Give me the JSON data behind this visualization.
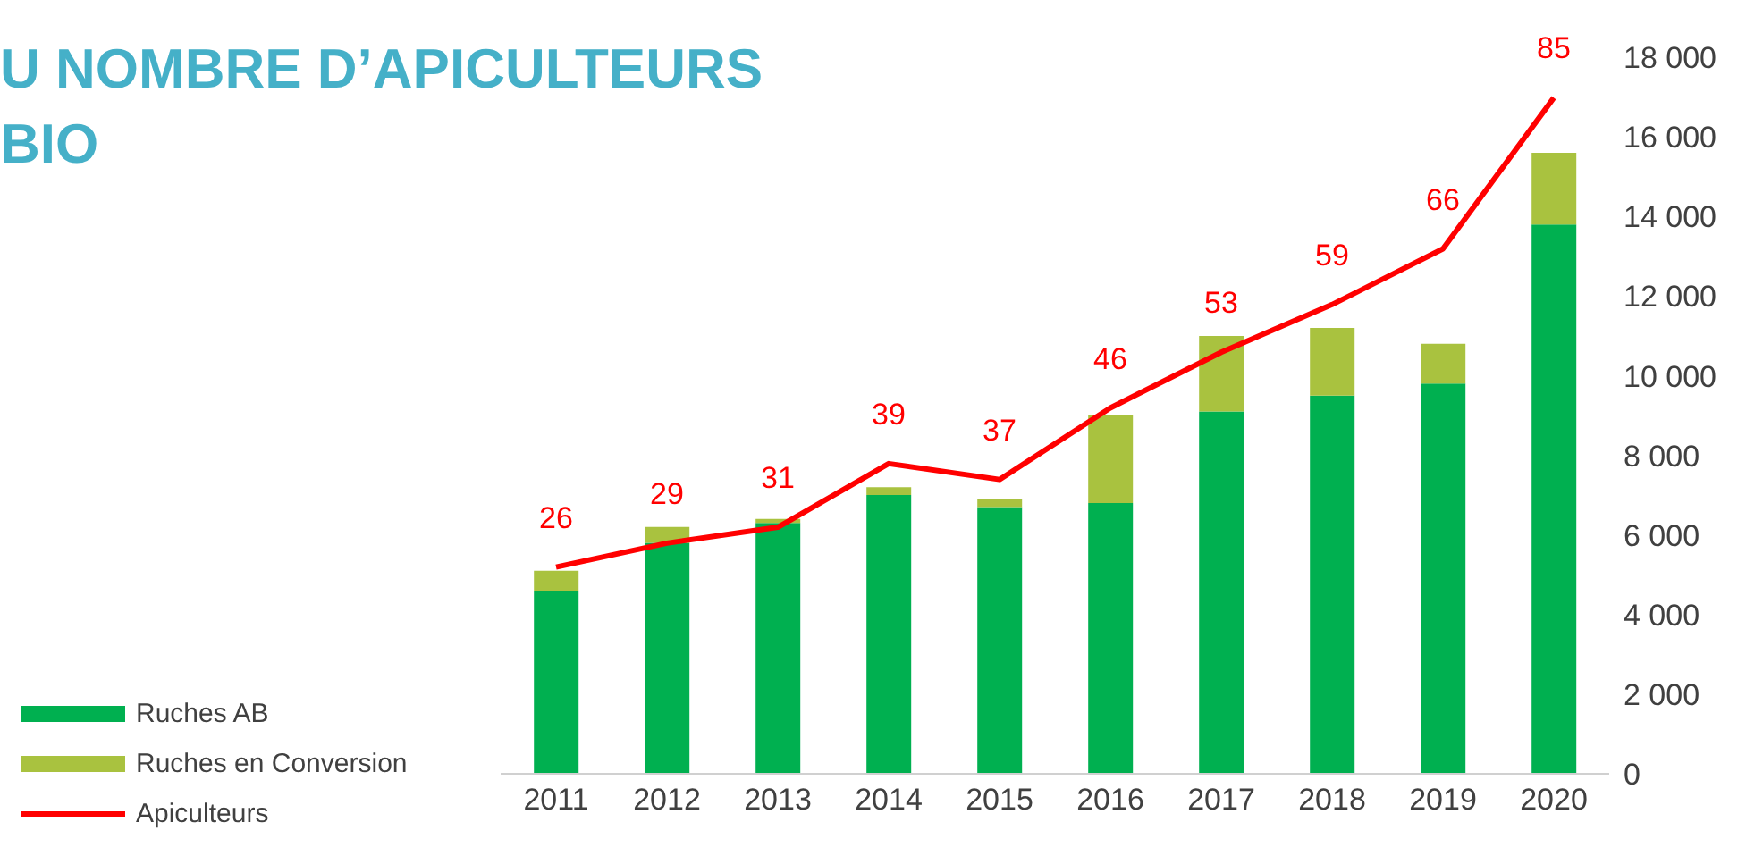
{
  "chart_data": {
    "type": "bar",
    "title": "U NOMBRE D’APICULTEURS\nBIO",
    "stacked": true,
    "categories": [
      "2011",
      "2012",
      "2013",
      "2014",
      "2015",
      "2016",
      "2017",
      "2018",
      "2019",
      "2020"
    ],
    "series": [
      {
        "name": "Ruches AB",
        "color": "#00b050",
        "values": [
          4600,
          5800,
          6300,
          7000,
          6700,
          6800,
          9100,
          9500,
          9800,
          13800
        ]
      },
      {
        "name": "Ruches en Conversion",
        "color": "#a9c23f",
        "values": [
          500,
          400,
          100,
          200,
          200,
          2200,
          1900,
          1700,
          1000,
          1800
        ]
      },
      {
        "name": "Apiculteurs",
        "type": "line",
        "axis": "y2",
        "color": "#ff0000",
        "values": [
          26,
          29,
          31,
          39,
          37,
          46,
          53,
          59,
          66,
          85
        ],
        "data_labels": true
      }
    ],
    "ylim": [
      0,
      18000
    ],
    "yticks": [
      {
        "value": 0,
        "label": "0"
      },
      {
        "value": 2000,
        "label": "2 000"
      },
      {
        "value": 4000,
        "label": "4 000"
      },
      {
        "value": 6000,
        "label": "6 000"
      },
      {
        "value": 8000,
        "label": "8 000"
      },
      {
        "value": 10000,
        "label": "10 000"
      },
      {
        "value": 12000,
        "label": "12 000"
      },
      {
        "value": 14000,
        "label": "14 000"
      },
      {
        "value": 16000,
        "label": "16 000"
      },
      {
        "value": 18000,
        "label": "18 000"
      }
    ],
    "grid": false,
    "legend": "bottom left"
  }
}
